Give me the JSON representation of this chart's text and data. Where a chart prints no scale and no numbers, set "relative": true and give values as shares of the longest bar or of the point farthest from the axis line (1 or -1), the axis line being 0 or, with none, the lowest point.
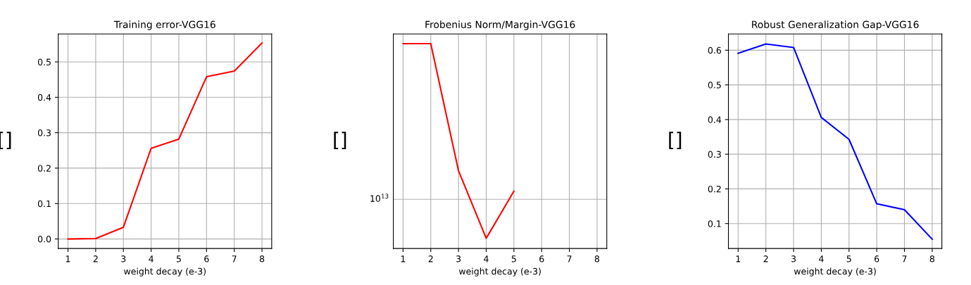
{
  "chart_data": [
    {
      "type": "line",
      "title": "Training error-VGG16",
      "xlabel": "weight decay (e-3)",
      "ylabel": "[]",
      "x": [
        1,
        2,
        3,
        4,
        5,
        6,
        7,
        8
      ],
      "series": [
        {
          "color": "#ff0000",
          "values": [
            0.0,
            0.001,
            0.033,
            0.256,
            0.282,
            0.458,
            0.474,
            0.553
          ]
        }
      ],
      "xlim": [
        0.65,
        8.35
      ],
      "xticks": [
        1,
        2,
        3,
        4,
        5,
        6,
        7,
        8
      ],
      "ylim": [
        -0.027,
        0.579
      ],
      "yticks": [
        {
          "value": 0,
          "label": "0.0"
        },
        0.1,
        0.2,
        0.3,
        0.4,
        0.5
      ],
      "grid": true
    },
    {
      "type": "line",
      "title": "Frobenius Norm/Margin-VGG16",
      "xlabel": "weight decay (e-3)",
      "ylabel": "[]",
      "x": [
        1,
        2,
        3,
        4,
        5
      ],
      "series": [
        {
          "color": "#ff0000",
          "values": [
            1,
            1,
            0.38,
            0.05,
            0.28
          ]
        }
      ],
      "relative": true,
      "xlim": [
        0.65,
        8.35
      ],
      "xticks": [
        1,
        2,
        3,
        4,
        5,
        6,
        7,
        8
      ],
      "ref_lines": [
        {
          "axis": "y",
          "value": 0.24,
          "color": "#b0b0b0"
        }
      ],
      "annotations": [
        "10$^{13}$"
      ],
      "grid": "x"
    },
    {
      "type": "line",
      "title": "Robust Generalization Gap-VGG16",
      "xlabel": "weight decay (e-3)",
      "ylabel": "[]",
      "x": [
        1,
        2,
        3,
        4,
        5,
        6,
        7,
        8
      ],
      "series": [
        {
          "color": "#0000ff",
          "values": [
            0.591,
            0.618,
            0.608,
            0.406,
            0.343,
            0.157,
            0.14,
            0.055
          ]
        }
      ],
      "xlim": [
        0.65,
        8.35
      ],
      "xticks": [
        1,
        2,
        3,
        4,
        5,
        6,
        7,
        8
      ],
      "ylim": [
        0.028,
        0.647
      ],
      "yticks": [
        0.1,
        0.2,
        0.3,
        0.4,
        0.5,
        0.6
      ],
      "grid": true
    }
  ]
}
